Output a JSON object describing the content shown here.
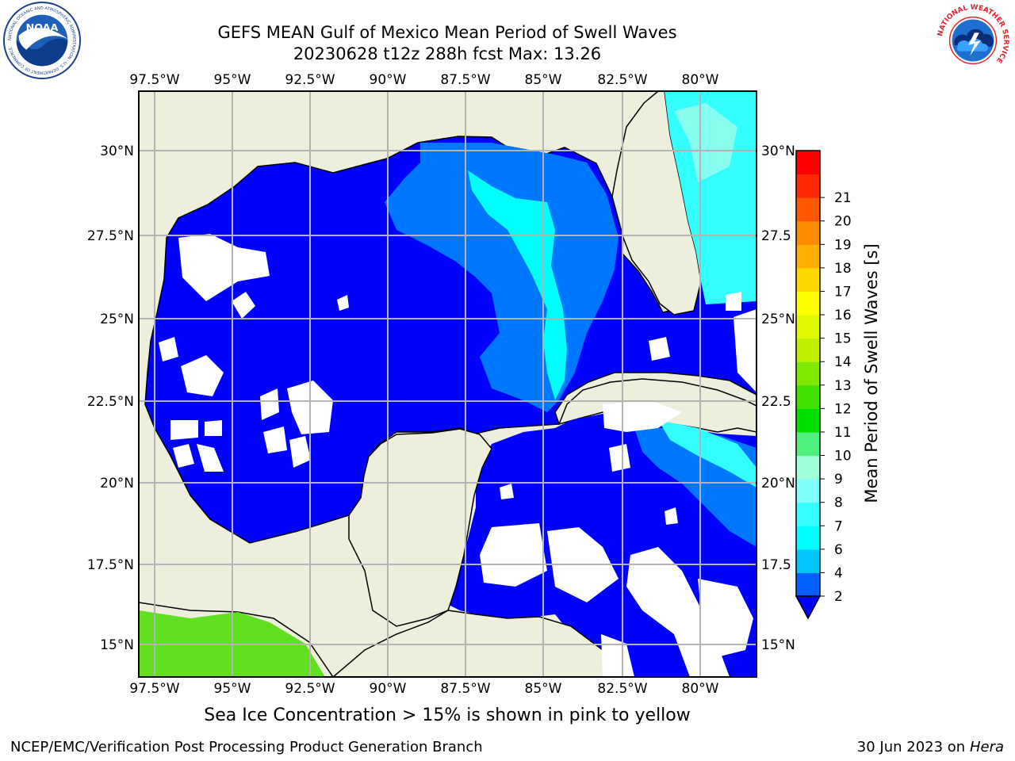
{
  "header": {
    "title_line1": "GEFS MEAN Gulf of Mexico Mean Period of Swell Waves",
    "title_line2": "20230628 t12z 288h fcst   Max: 13.26"
  },
  "logos": {
    "noaa_text": "NOAA",
    "noaa_ring": "NATIONAL OCEANIC AND ATMOSPHERIC ADMINISTRATION · U.S. DEPARTMENT OF COMMERCE",
    "nws_ring": "NATIONAL WEATHER SERVICE"
  },
  "map": {
    "lon_labels": [
      "97.5°W",
      "95°W",
      "92.5°W",
      "90°W",
      "87.5°W",
      "85°W",
      "82.5°W",
      "80°W"
    ],
    "lat_labels_left": [
      "30°N",
      "27.5°N",
      "25°N",
      "22.5°N",
      "20°N",
      "17.5°N",
      "15°N"
    ],
    "lat_labels_right": [
      "30°N",
      "27.5",
      "25°N",
      "22.5",
      "20°N",
      "17.5",
      "15°N"
    ],
    "colors": {
      "land": "#eeeedd",
      "ocean": "#0000ff",
      "grid": "#b3b3b3"
    }
  },
  "colorbar": {
    "label": "Mean Period of Swell Waves [s]",
    "ticks": [
      "2",
      "4",
      "6",
      "7",
      "8",
      "9",
      "10",
      "11",
      "12",
      "13",
      "14",
      "15",
      "16",
      "17",
      "18",
      "19",
      "20",
      "21"
    ],
    "colors": [
      "#0060ff",
      "#00c8ff",
      "#00ffff",
      "#38ffff",
      "#80ffff",
      "#a0ffd8",
      "#50f080",
      "#00e000",
      "#40e000",
      "#80e800",
      "#c0f000",
      "#e0f800",
      "#ffff00",
      "#ffd800",
      "#ffb000",
      "#ff8c00",
      "#ff5800",
      "#ff2800",
      "#ff0000"
    ]
  },
  "footer": {
    "ice_note": "Sea Ice Concentration > 15% is shown in pink to yellow",
    "credit": "NCEP/EMC/Verification Post Processing Product Generation Branch",
    "date": "30 Jun 2023 on",
    "machine": "Hera"
  }
}
